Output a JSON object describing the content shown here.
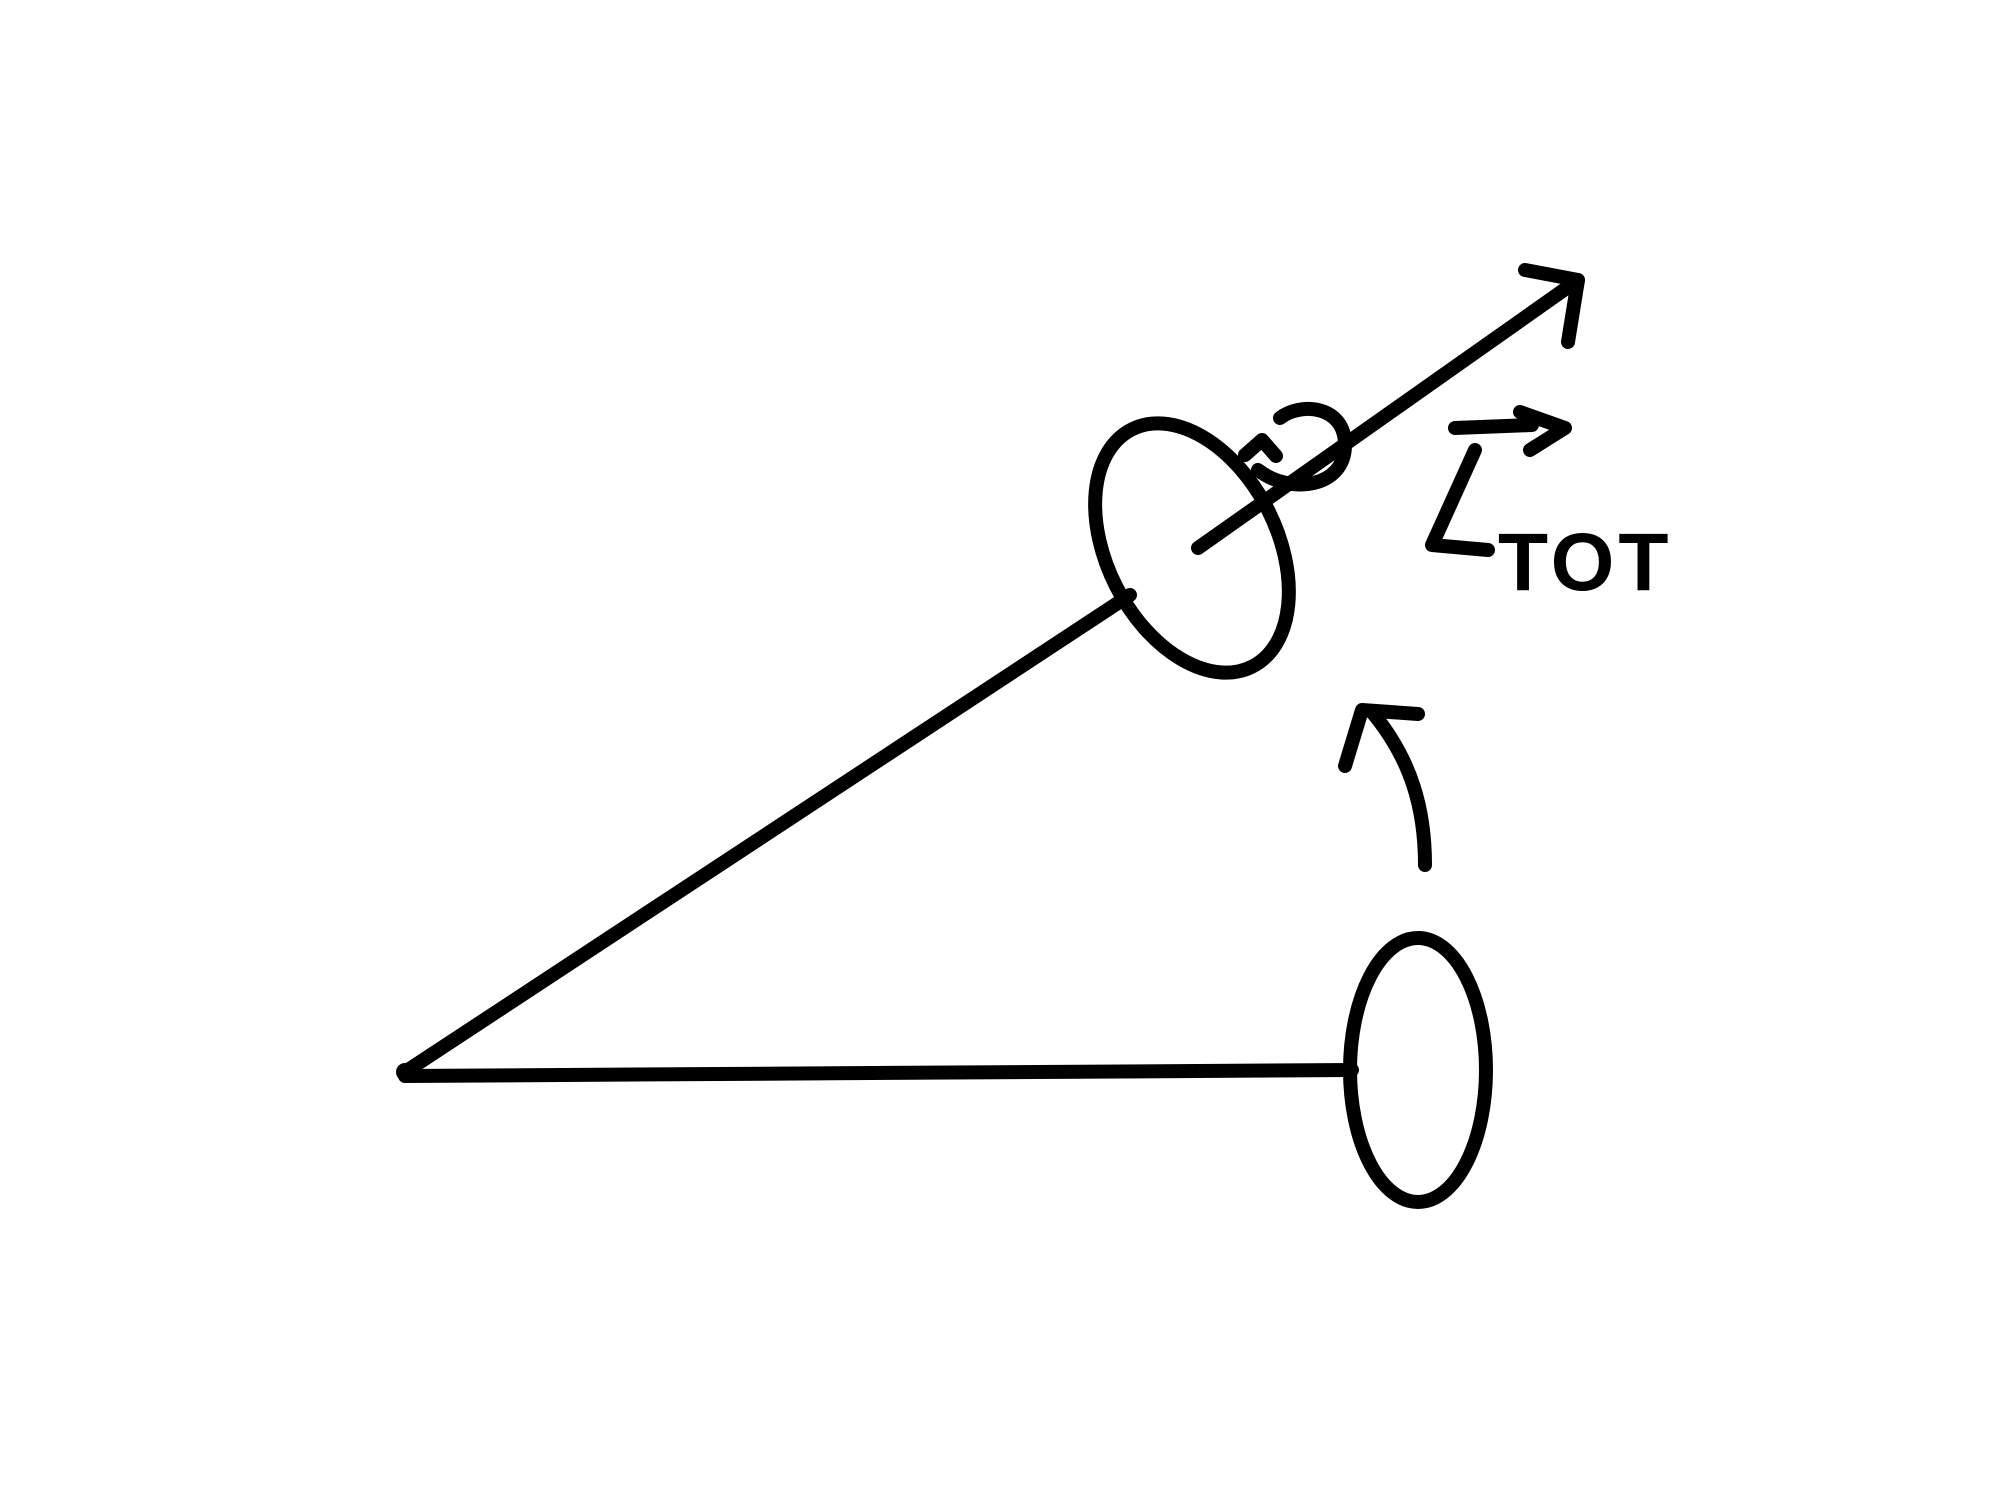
{
  "diagram": {
    "labels": {
      "angular_momentum_symbol": "L",
      "angular_momentum_subscript": "TOT"
    },
    "colors": {
      "ink": "#000000",
      "background": "#ffffff"
    }
  }
}
